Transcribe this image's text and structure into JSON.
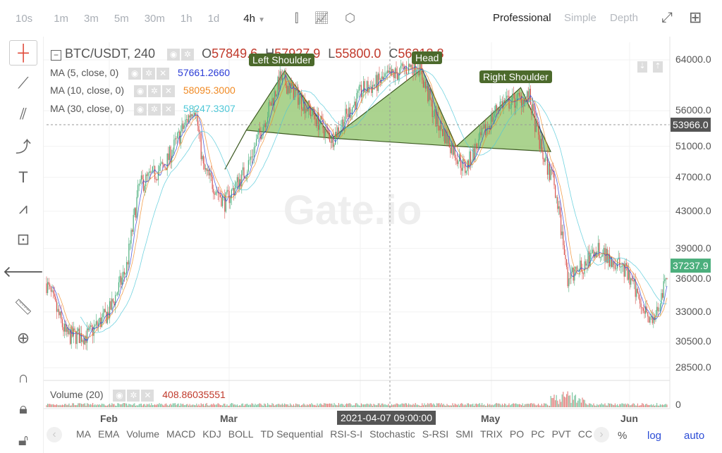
{
  "toolbar": {
    "intervals": [
      "10s",
      "1m",
      "3m",
      "5m",
      "30m",
      "1h",
      "1d",
      "4h"
    ],
    "active_interval": "4h",
    "modes": [
      "Professional",
      "Simple",
      "Depth"
    ],
    "active_mode": "Professional"
  },
  "legend": {
    "symbol": "BTC/USDT, 240",
    "open_label": "O",
    "open": "57849.6",
    "high_label": "H",
    "high": "57927.9",
    "low_label": "L",
    "low": "55800.0",
    "close_label": "C",
    "close": "56218.8",
    "ma": [
      {
        "label": "MA (5, close, 0)",
        "value": "57661.2660",
        "color": "#2a3bd6"
      },
      {
        "label": "MA (10, close, 0)",
        "value": "58095.3000",
        "color": "#f08a24"
      },
      {
        "label": "MA (30, close, 0)",
        "value": "58247.3307",
        "color": "#4fc8d8"
      }
    ],
    "volume_label": "Volume (20)",
    "volume_value": "408.86035551"
  },
  "price_axis": {
    "ticks": [
      "64000.0",
      "56000.0",
      "51000.0",
      "47000.0",
      "43000.0",
      "39000.0",
      "36000.0",
      "33000.0",
      "30500.0",
      "28500.0"
    ],
    "volume_zero": "0",
    "crosshair_price": "53966.0",
    "last_price": "37237.9",
    "last_price_color": "#4caf7d"
  },
  "time_axis": {
    "ticks": [
      "Feb",
      "Mar",
      "May",
      "Jun"
    ],
    "crosshair_time": "2021-04-07 09:00:00"
  },
  "patterns": {
    "left_shoulder": "Left Shoulder",
    "head": "Head",
    "right_shoulder": "Right Shoulder"
  },
  "watermark": "Gate.io",
  "indicators": [
    "MA",
    "EMA",
    "Volume",
    "MACD",
    "KDJ",
    "BOLL",
    "TD Sequential",
    "RSI-S-I",
    "Stochastic",
    "S-RSI",
    "SMI",
    "TRIX",
    "PO",
    "PC",
    "PVT",
    "CC"
  ],
  "scale_buttons": {
    "percent": "%",
    "log": "log",
    "auto": "auto"
  },
  "colors": {
    "up": "#4caf7d",
    "down": "#d9534f",
    "pattern_fill": "#8fc46a"
  },
  "chart_data": {
    "type": "candlestick",
    "scale": "log",
    "ylim": [
      28500,
      64000
    ],
    "price_path": [
      [
        "2021-01-17",
        36000
      ],
      [
        "2021-01-22",
        31000
      ],
      [
        "2021-01-27",
        31000
      ],
      [
        "2021-02-01",
        33000
      ],
      [
        "2021-02-05",
        37000
      ],
      [
        "2021-02-08",
        46000
      ],
      [
        "2021-02-14",
        48500
      ],
      [
        "2021-02-21",
        57000
      ],
      [
        "2021-02-23",
        48000
      ],
      [
        "2021-02-28",
        44000
      ],
      [
        "2021-03-05",
        48000
      ],
      [
        "2021-03-13",
        61000
      ],
      [
        "2021-03-18",
        57500
      ],
      [
        "2021-03-25",
        52000
      ],
      [
        "2021-04-01",
        59000
      ],
      [
        "2021-04-14",
        63500
      ],
      [
        "2021-04-18",
        55000
      ],
      [
        "2021-04-25",
        48000
      ],
      [
        "2021-05-03",
        57000
      ],
      [
        "2021-05-10",
        58000
      ],
      [
        "2021-05-13",
        50000
      ],
      [
        "2021-05-16",
        46000
      ],
      [
        "2021-05-19",
        36000
      ],
      [
        "2021-05-22",
        37000
      ],
      [
        "2021-05-26",
        39000
      ],
      [
        "2021-06-01",
        37000
      ],
      [
        "2021-06-08",
        32000
      ],
      [
        "2021-06-12",
        37237.9
      ]
    ],
    "head_and_shoulders": [
      [
        "2021-02-28",
        48000
      ],
      [
        "2021-03-05",
        53200
      ],
      [
        "2021-03-14",
        62200
      ],
      [
        "2021-03-25",
        52100
      ],
      [
        "2021-04-15",
        62500
      ],
      [
        "2021-04-23",
        51000
      ],
      [
        "2021-05-08",
        59500
      ],
      [
        "2021-05-15",
        50300
      ]
    ]
  }
}
